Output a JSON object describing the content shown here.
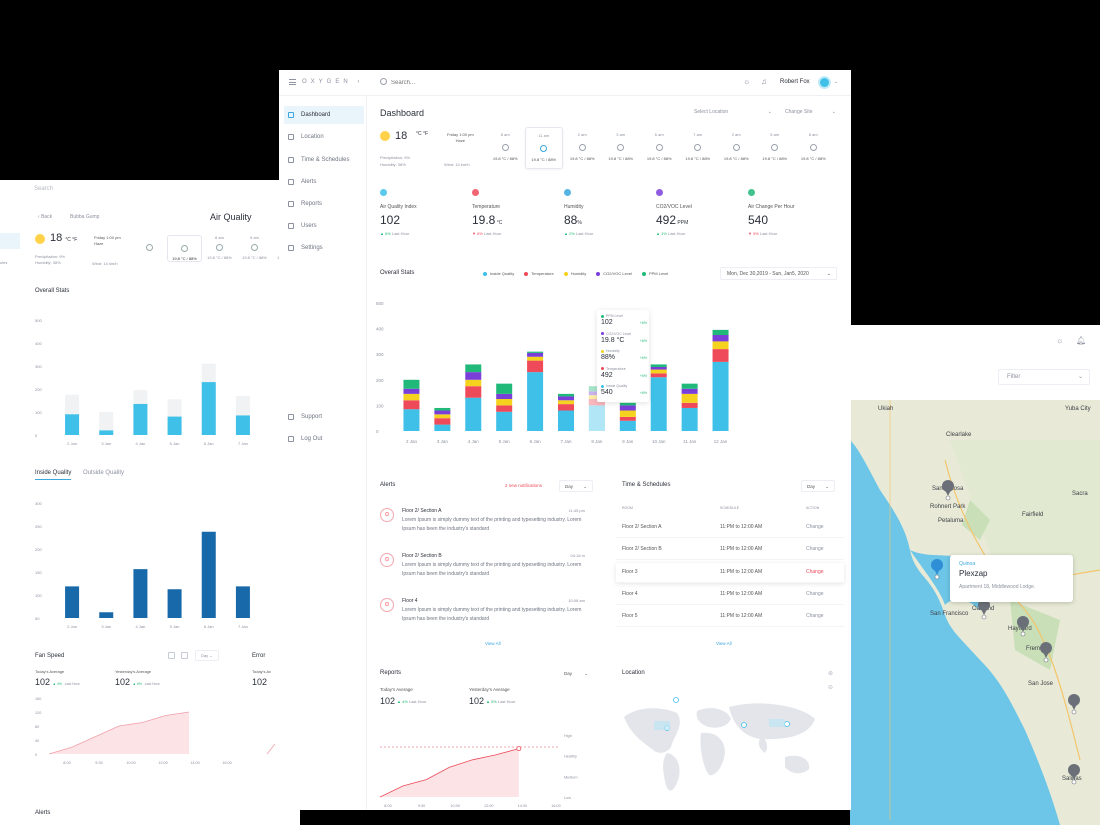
{
  "left_screen": {
    "search_placeholder": "Search",
    "back_label": "Back",
    "breadcrumb": "Bubba Gump",
    "title": "Air Quality",
    "weather": {
      "temp": "18",
      "unit": "°C °F",
      "precipitation": "Precipitation: 9%",
      "humidity": "Humidity: 38%",
      "day": "Friday 1:00 pm",
      "condition": "Haze",
      "wind": "Wind: 14 km/h"
    },
    "hourly": [
      {
        "time": "",
        "value": ""
      },
      {
        "time": "",
        "value": "19.8 °C / 88%"
      },
      {
        "time": "8 am",
        "value": "19.8 °C / 88%"
      },
      {
        "time": "9 am",
        "value": "19.8 °C / 88%"
      },
      {
        "time": "",
        "value": "19.8 °C / 88%"
      }
    ],
    "sidebar_label": "ules",
    "overall_stats": "Overall Stats",
    "chart1": {
      "yticks": [
        "500",
        "400",
        "300",
        "200",
        "100",
        "0"
      ],
      "categories": [
        "2 Jan",
        "3 Jan",
        "4 Jan",
        "5 Jan",
        "6 Jan",
        "7 Jan"
      ],
      "values": [
        90,
        20,
        135,
        80,
        230,
        85
      ],
      "totals": [
        175,
        100,
        195,
        155,
        310,
        170
      ],
      "max": 500
    },
    "tabs": [
      "Inside Quality",
      "Outside Quality"
    ],
    "chart2": {
      "yticks": [
        "300",
        "250",
        "200",
        "150",
        "100",
        "50"
      ],
      "categories": [
        "2 Jan",
        "3 Jan",
        "4 Jan",
        "5 Jan",
        "6 Jan",
        "7 Jan"
      ],
      "values": [
        110,
        20,
        170,
        100,
        300,
        110
      ],
      "max": 400
    },
    "fan_speed": {
      "title": "Fan Speed",
      "dropdown": "Day",
      "today_label": "Today's Average",
      "today_value": "102",
      "today_delta": "4%",
      "yesterday_label": "Yesterday's Average",
      "yesterday_value": "102",
      "yesterday_delta": "6%",
      "delta_note": "Last Hour",
      "yticks": [
        "160",
        "120",
        "80",
        "40",
        "0"
      ],
      "xticks": [
        "8:00",
        "9:30",
        "10:00",
        "12:00",
        "14:00",
        "16:00"
      ],
      "values": [
        0,
        20,
        50,
        80,
        90,
        110,
        120
      ]
    },
    "error": {
      "title": "Error",
      "today_label": "Today's Av",
      "today_value": "102"
    },
    "alerts_title": "Alerts"
  },
  "right_screen": {
    "filter_placeholder": "Filter",
    "map_labels": [
      {
        "name": "Ukiah"
      },
      {
        "name": "Yuba City"
      },
      {
        "name": "Clearlake"
      },
      {
        "name": "Santa Rosa"
      },
      {
        "name": "Rohnert Park"
      },
      {
        "name": "Petaluma"
      },
      {
        "name": "Fairfield"
      },
      {
        "name": "Sacra"
      },
      {
        "name": "San Francisco"
      },
      {
        "name": "Oakland"
      },
      {
        "name": "Hayward"
      },
      {
        "name": "Fremont"
      },
      {
        "name": "San Jose"
      },
      {
        "name": "Salinas"
      }
    ],
    "popup": {
      "label": "Quinoa",
      "title": "Plexzap",
      "address": "Apartment 18, Middlewood Lodge."
    }
  },
  "header": {
    "logo": "OXYGEN",
    "search_placeholder": "Search...",
    "user_name": "Robert Fox"
  },
  "sidebar": {
    "items": [
      {
        "label": "Dashboard",
        "icon": "grid-icon"
      },
      {
        "label": "Location",
        "icon": "map-icon"
      },
      {
        "label": "Time & Schedules",
        "icon": "clock-icon"
      },
      {
        "label": "Alerts",
        "icon": "bell-icon"
      },
      {
        "label": "Reports",
        "icon": "report-icon"
      },
      {
        "label": "Users",
        "icon": "user-icon"
      },
      {
        "label": "Settings",
        "icon": "gear-icon"
      }
    ],
    "bottom": [
      {
        "label": "Support",
        "icon": "headset-icon"
      },
      {
        "label": "Log Out",
        "icon": "power-icon"
      }
    ]
  },
  "dashboard": {
    "title": "Dashboard",
    "select_location": "Select Location",
    "change_site": "Change Site",
    "weather": {
      "temp": "18",
      "unit": "°C °F",
      "precipitation": "Precipitation: 9%",
      "humidity": "Humidity: 38%",
      "day_line1": "Friday 1:00 pm",
      "day_line2": "Haze",
      "wind": "Wind: 14 km/h"
    },
    "hourly": [
      {
        "time": "8 am",
        "value": "19.8 °C / 88%"
      },
      {
        "time": "11 am",
        "value": "19.8 °C / 88%"
      },
      {
        "time": "2 am",
        "value": "19.8 °C / 88%"
      },
      {
        "time": "3 am",
        "value": "19.8 °C / 88%"
      },
      {
        "time": "6 am",
        "value": "19.8 °C / 88%"
      },
      {
        "time": "7 am",
        "value": "19.8 °C / 88%"
      },
      {
        "time": "2 am",
        "value": "19.8 °C / 88%"
      },
      {
        "time": "5 am",
        "value": "19.8 °C / 88%"
      },
      {
        "time": "8 am",
        "value": "19.8 °C / 88%"
      }
    ],
    "kpis": [
      {
        "label": "Air Quality Index",
        "value": "102",
        "unit": "",
        "delta": "6%",
        "dir": "up",
        "note": "Last Hour",
        "color": "#3ec0e8"
      },
      {
        "label": "Temperature",
        "value": "19.8",
        "unit": " °C",
        "delta": "6%",
        "dir": "down",
        "note": "Last Hour",
        "color": "#ee4a5a"
      },
      {
        "label": "Humidity",
        "value": "88",
        "unit": "%",
        "delta": "2%",
        "dir": "up",
        "note": "Last Hour",
        "color": "#3aa7dd"
      },
      {
        "label": "CO2/VOC Level",
        "value": "492",
        "unit": " PPM",
        "delta": "1%",
        "dir": "up",
        "note": "Last Hour",
        "color": "#7b3fd9"
      },
      {
        "label": "Air Change Per Hour",
        "value": "540",
        "unit": "",
        "delta": "5%",
        "dir": "down",
        "note": "Last Hour",
        "color": "#21b97a"
      }
    ],
    "overall_stats": "Overall Stats",
    "date_range": "Mon, Dec 30,2019 - Sun, Jan5, 2020",
    "alerts": {
      "title": "Alerts",
      "new": "2 new notifications",
      "dropdown": "Day",
      "items": [
        {
          "title": "Floor 2/ Section A",
          "time": "11:45 pm",
          "body": "Lorem Ipsum is simply dummy text of the printing and typesetting industry. Lorem Ipsum has been the industry's standard"
        },
        {
          "title": "Floor 2/ Section B",
          "time": "04:16 m",
          "body": "Lorem Ipsum is simply dummy text of the printing and typesetting industry. Lorem Ipsum has been the industry's standard"
        },
        {
          "title": "Floor 4",
          "time": "10:08 am",
          "body": "Lorem Ipsum is simply dummy text of the printing and typesetting industry. Lorem Ipsum has been the industry's standard"
        }
      ],
      "view_all": "View All"
    },
    "schedules": {
      "title": "Time & Schedules",
      "dropdown": "Day",
      "columns": [
        "ROOM",
        "SCHEDULE",
        "ACTION"
      ],
      "rows": [
        {
          "room": "Floor 2/ Section A",
          "schedule": "11:PM to 12:00 AM",
          "action": "Change"
        },
        {
          "room": "Floor 2/ Section B",
          "schedule": "11:PM to 12:00 AM",
          "action": "Change"
        },
        {
          "room": "Floor 3",
          "schedule": "11:PM to 12:00 AM",
          "action": "Change"
        },
        {
          "room": "Floor 4",
          "schedule": "11:PM to 12:00 AM",
          "action": "Change"
        },
        {
          "room": "Floor 5",
          "schedule": "11:PM to 12:00 AM",
          "action": "Change"
        }
      ],
      "view_all": "View All"
    },
    "reports": {
      "title": "Reports",
      "dropdown": "Day",
      "today_label": "Today's Average",
      "today_value": "102",
      "today_delta": "4%",
      "yesterday_label": "Yesterday's Average",
      "yesterday_value": "102",
      "yesterday_delta": "5%",
      "delta_note": "Last Hour"
    },
    "location_title": "Location"
  },
  "tooltip": [
    {
      "label": "PPM Level",
      "value": "102",
      "pct": "+6%",
      "color": "#21b97a"
    },
    {
      "label": "CO2/VOC Level",
      "value": "19.8 °C",
      "pct": "+6%",
      "color": "#7b3fd9"
    },
    {
      "label": "Humidity",
      "value": "88%",
      "pct": "+6%",
      "color": "#f5d21e"
    },
    {
      "label": "Temperature",
      "value": "492",
      "pct": "+6%",
      "color": "#ee4a5a"
    },
    {
      "label": "Inside Quality",
      "value": "540",
      "pct": "+6%",
      "color": "#3ec0e8"
    }
  ],
  "chart_data": [
    {
      "type": "bar",
      "stacked": true,
      "title": "Overall Stats",
      "categories": [
        "2 Jan",
        "3 Jan",
        "4 Jan",
        "5 Jan",
        "6 Jan",
        "7 Jan",
        "8 Jan",
        "9 Jan",
        "10 Jan",
        "11 Jan",
        "12 Jan"
      ],
      "yticks": [
        "500",
        "400",
        "300",
        "200",
        "100",
        "0"
      ],
      "ylim": [
        0,
        500
      ],
      "legend": "top",
      "series": [
        {
          "name": "Inside Quality",
          "color": "#3ec0e8",
          "values": [
            85,
            25,
            130,
            75,
            230,
            80,
            100,
            40,
            210,
            90,
            270
          ]
        },
        {
          "name": "Temperature",
          "color": "#ee4a5a",
          "values": [
            35,
            25,
            45,
            25,
            45,
            25,
            25,
            15,
            15,
            20,
            50
          ]
        },
        {
          "name": "Humidity",
          "color": "#f5d21e",
          "values": [
            25,
            15,
            25,
            25,
            15,
            15,
            15,
            25,
            15,
            35,
            30
          ]
        },
        {
          "name": "CO2/VOC Level",
          "color": "#7b3fd9",
          "values": [
            20,
            15,
            30,
            20,
            15,
            15,
            15,
            20,
            10,
            20,
            25
          ]
        },
        {
          "name": "PPM Level",
          "color": "#21b97a",
          "values": [
            35,
            10,
            30,
            40,
            5,
            10,
            20,
            10,
            10,
            20,
            20
          ]
        }
      ]
    },
    {
      "type": "area",
      "title": "Reports",
      "xticks": [
        "8:00",
        "9:30",
        "10:00",
        "12:00",
        "14:00",
        "16:00"
      ],
      "yticks": [
        "High",
        "Healthy",
        "Medium",
        "Low"
      ],
      "values": [
        0,
        18,
        28,
        48,
        60,
        68,
        78
      ]
    }
  ]
}
